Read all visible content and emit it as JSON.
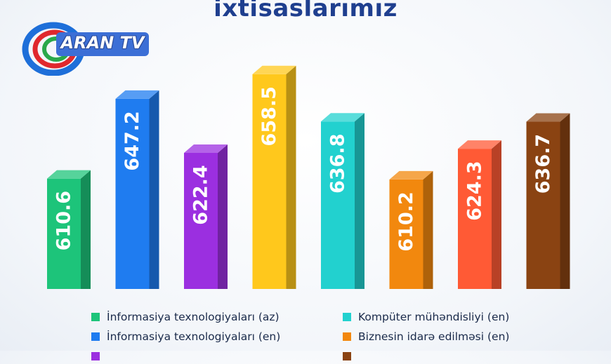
{
  "title": "ixtisaslarımız",
  "logo": {
    "text": "ARAN TV"
  },
  "chart_data": {
    "type": "bar",
    "title": "ixtisaslarımız",
    "xlabel": "",
    "ylabel": "",
    "ylim": [
      560,
      670
    ],
    "grid": false,
    "legend_position": "bottom",
    "categories": [
      "İnformasiya texnologiyaları (az)",
      "İnformasiya texnologiyaları (en)",
      "",
      "",
      "Kompüter mühəndisliyi (en)",
      "Biznesin idarə edilməsi (en)",
      "",
      ""
    ],
    "values": [
      610.6,
      647.2,
      622.4,
      658.5,
      636.8,
      610.2,
      624.3,
      636.7
    ],
    "value_labels": [
      "610.6",
      "647.2",
      "622.4",
      "658.5",
      "636.8",
      "610.2",
      "624.3",
      "636.7"
    ],
    "colors": [
      "#1dc47a",
      "#1f7cf0",
      "#9b2fe0",
      "#ffc81c",
      "#22d1cf",
      "#f2880e",
      "#ff5a35",
      "#8a4312"
    ]
  },
  "legend": [
    {
      "label": "İnformasiya texnologiyaları (az)",
      "color": "#1dc47a"
    },
    {
      "label": "İnformasiya texnologiyaları (en)",
      "color": "#1f7cf0"
    },
    {
      "label": "",
      "color": "#9b2fe0"
    },
    {
      "label": "Kompüter mühəndisliyi (en)",
      "color": "#22d1cf"
    },
    {
      "label": "Biznesin idarə edilməsi (en)",
      "color": "#f2880e"
    },
    {
      "label": "",
      "color": "#8a4312"
    }
  ]
}
